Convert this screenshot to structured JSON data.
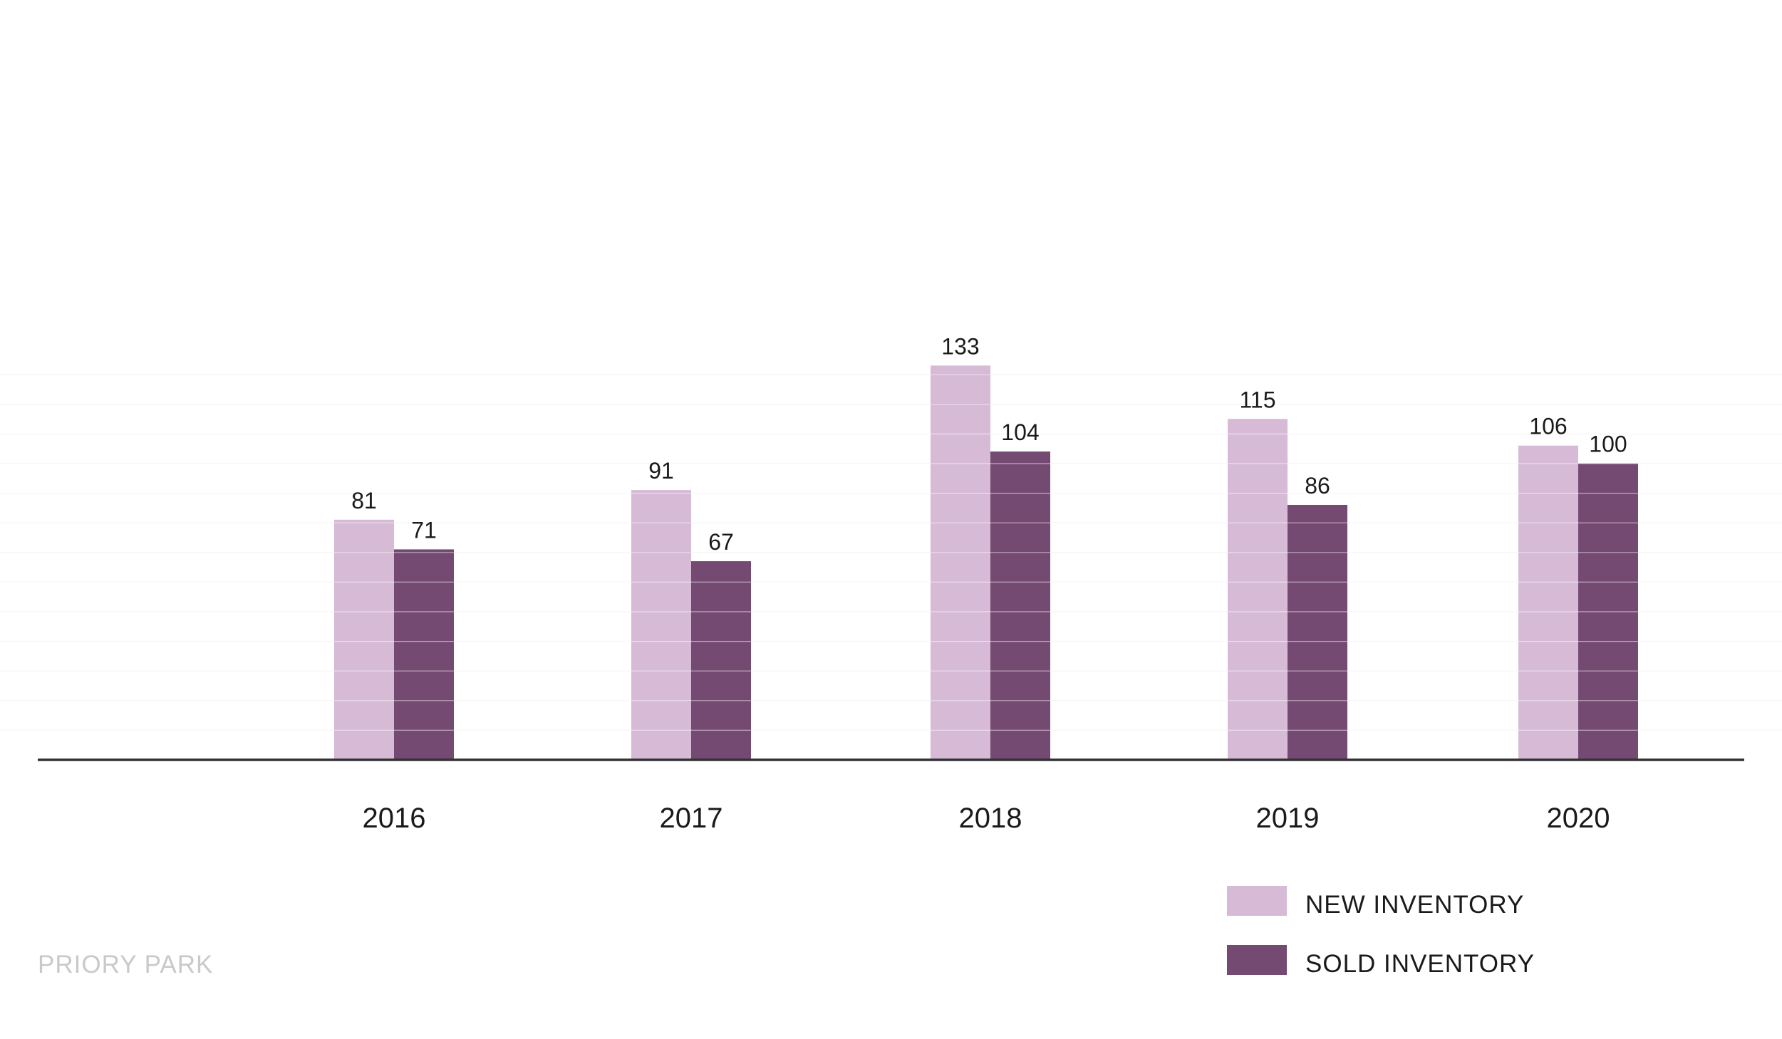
{
  "chart_data": {
    "type": "bar",
    "categories": [
      "2016",
      "2017",
      "2018",
      "2019",
      "2020"
    ],
    "series": [
      {
        "name": "NEW INVENTORY",
        "values": [
          81,
          91,
          133,
          115,
          106
        ],
        "color": "#d6bad6"
      },
      {
        "name": "SOLD INVENTORY",
        "values": [
          71,
          67,
          104,
          86,
          100
        ],
        "color": "#744a72"
      }
    ],
    "ylim": [
      0,
      200
    ],
    "grid": true,
    "legend_position": "bottom-right"
  },
  "footer": {
    "label": "PRIORY PARK"
  },
  "colors": {
    "axis": "#333333",
    "grid": "#f2f2f2",
    "footer_text": "#c9c9c9"
  }
}
